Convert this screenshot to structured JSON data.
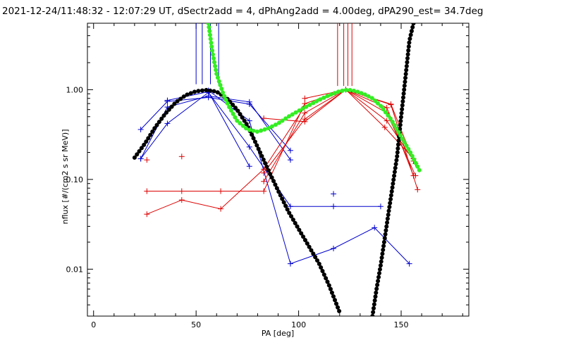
{
  "chart_data": {
    "type": "scatter",
    "title": "2021-12-24/11:48:32 - 12:07:29 UT, dSectr2add = 4, dPhAng2add = 4.00deg, dPA290_est=  34.7deg",
    "xlabel": "PA [deg]",
    "ylabel": "nflux [#/(cm2 s sr MeV)]",
    "xlim": [
      -3,
      183
    ],
    "ylim": [
      0.003,
      5.5
    ],
    "yscale": "log",
    "grid": false,
    "x_ticks": [
      0,
      50,
      100,
      150
    ],
    "x_tick_labels": [
      "0",
      "50",
      "100",
      "150"
    ],
    "y_ticks": [
      0.01,
      0.1,
      1.0
    ],
    "y_tick_labels": [
      "0.01",
      "0.10",
      "1.00"
    ],
    "colors": {
      "blue": "#0000cc",
      "red": "#dd0000",
      "black": "#000000",
      "green": "#33ee22"
    },
    "vertical_markers": [
      {
        "color": "blue",
        "x": [
          50,
          53,
          57,
          61
        ],
        "y_from": 1.15,
        "y_to": 5.5
      },
      {
        "color": "red",
        "x": [
          119,
          122,
          124,
          126
        ],
        "y_from": 1.1,
        "y_to": 5.5
      }
    ],
    "blue_lines": [
      [
        [
          23,
          0.36
        ],
        [
          36,
          0.74
        ],
        [
          56,
          0.82
        ],
        [
          76,
          0.69
        ],
        [
          96,
          0.21
        ]
      ],
      [
        [
          23,
          0.17
        ],
        [
          36,
          0.64
        ],
        [
          56,
          0.85
        ],
        [
          76,
          0.73
        ],
        [
          96,
          0.165
        ]
      ],
      [
        [
          23,
          0.17
        ],
        [
          36,
          0.42
        ],
        [
          56,
          0.93
        ],
        [
          76,
          0.23
        ],
        [
          96,
          0.05
        ],
        [
          117,
          0.05
        ],
        [
          140,
          0.05
        ]
      ],
      [
        [
          36,
          0.76
        ],
        [
          56,
          0.95
        ],
        [
          76,
          0.14
        ]
      ],
      [
        [
          56,
          0.98
        ],
        [
          76,
          0.45
        ],
        [
          96,
          0.0115
        ],
        [
          117,
          0.017
        ],
        [
          137,
          0.029
        ],
        [
          154,
          0.0115
        ]
      ]
    ],
    "blue_points": [
      [
        117,
        0.069
      ]
    ],
    "red_lines": [
      [
        [
          26,
          0.074
        ],
        [
          43,
          0.074
        ],
        [
          62,
          0.074
        ],
        [
          83,
          0.074
        ],
        [
          103,
          0.7
        ],
        [
          123,
          1.0
        ],
        [
          143,
          0.63
        ],
        [
          156,
          0.11
        ]
      ],
      [
        [
          26,
          0.041
        ],
        [
          43,
          0.059
        ],
        [
          62,
          0.047
        ],
        [
          83,
          0.13
        ],
        [
          103,
          0.65
        ],
        [
          123,
          1.0
        ],
        [
          143,
          0.55
        ],
        [
          157,
          0.11
        ]
      ],
      [
        [
          83,
          0.095
        ],
        [
          103,
          0.55
        ],
        [
          123,
          1.0
        ],
        [
          145,
          0.68
        ],
        [
          158,
          0.077
        ]
      ],
      [
        [
          83,
          0.118
        ],
        [
          103,
          0.47
        ],
        [
          123,
          1.0
        ],
        [
          143,
          0.45
        ],
        [
          157,
          0.15
        ]
      ],
      [
        [
          83,
          0.48
        ],
        [
          103,
          0.44
        ],
        [
          123,
          1.0
        ],
        [
          142,
          0.38
        ],
        [
          156,
          0.17
        ]
      ],
      [
        [
          103,
          0.8
        ],
        [
          123,
          1.0
        ],
        [
          145,
          0.69
        ],
        [
          156,
          0.16
        ]
      ]
    ],
    "red_points": [
      [
        26,
        0.165
      ],
      [
        43,
        0.18
      ]
    ],
    "black_curve_1": [
      [
        20,
        0.175
      ],
      [
        25,
        0.25
      ],
      [
        30,
        0.38
      ],
      [
        35,
        0.54
      ],
      [
        40,
        0.72
      ],
      [
        45,
        0.87
      ],
      [
        50,
        0.96
      ],
      [
        55,
        0.99
      ],
      [
        60,
        0.95
      ],
      [
        65,
        0.8
      ],
      [
        70,
        0.6
      ],
      [
        75,
        0.4
      ],
      [
        80,
        0.23
      ],
      [
        85,
        0.13
      ],
      [
        90,
        0.075
      ],
      [
        95,
        0.044
      ],
      [
        100,
        0.028
      ],
      [
        105,
        0.018
      ],
      [
        110,
        0.0115
      ],
      [
        115,
        0.0065
      ],
      [
        120,
        0.0033
      ]
    ],
    "black_curve_2": [
      [
        136,
        0.003
      ],
      [
        138,
        0.006
      ],
      [
        140,
        0.011
      ],
      [
        142,
        0.022
      ],
      [
        144,
        0.045
      ],
      [
        146,
        0.09
      ],
      [
        148,
        0.18
      ],
      [
        150,
        0.5
      ],
      [
        152,
        1.3
      ],
      [
        154,
        3.5
      ],
      [
        156,
        5.5
      ]
    ],
    "green_curve": [
      [
        56,
        5.5
      ],
      [
        58,
        2.6
      ],
      [
        60,
        1.5
      ],
      [
        63,
        0.93
      ],
      [
        66,
        0.65
      ],
      [
        70,
        0.45
      ],
      [
        75,
        0.36
      ],
      [
        80,
        0.34
      ],
      [
        85,
        0.37
      ],
      [
        90,
        0.42
      ],
      [
        95,
        0.5
      ],
      [
        100,
        0.58
      ],
      [
        105,
        0.67
      ],
      [
        110,
        0.77
      ],
      [
        115,
        0.87
      ],
      [
        120,
        0.96
      ],
      [
        124,
        1.0
      ],
      [
        128,
        0.96
      ],
      [
        132,
        0.89
      ],
      [
        136,
        0.8
      ],
      [
        140,
        0.66
      ],
      [
        145,
        0.47
      ],
      [
        150,
        0.3
      ],
      [
        155,
        0.19
      ],
      [
        159,
        0.125
      ]
    ]
  }
}
